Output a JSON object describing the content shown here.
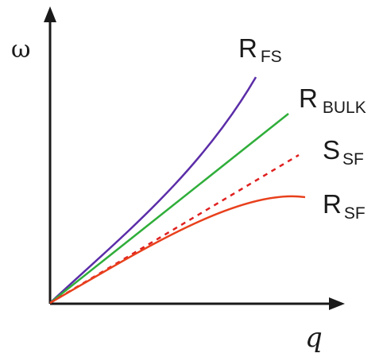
{
  "axes": {
    "y_label": "ω",
    "x_label": "q"
  },
  "curves": [
    {
      "id": "rfs",
      "main": "R",
      "sub": "FS",
      "color": "#5b2da8",
      "style": "solid"
    },
    {
      "id": "rbulk",
      "main": "R",
      "sub": "BULK",
      "color": "#2fae3a",
      "style": "solid"
    },
    {
      "id": "ssf",
      "main": "S",
      "sub": "SF",
      "color": "#e02020",
      "style": "dotted"
    },
    {
      "id": "rsf",
      "main": "R",
      "sub": "SF",
      "color": "#e8401c",
      "style": "solid"
    }
  ]
}
